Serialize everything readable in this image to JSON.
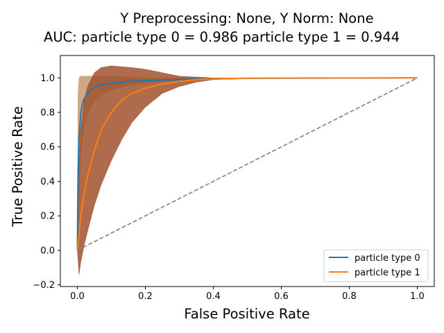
{
  "chart_data": {
    "type": "line",
    "title_line1": "Y Preprocessing: None, Y Norm: None",
    "title_line2": "AUC: particle type 0 = 0.986 particle type 1 = 0.944",
    "xlabel": "False Positive Rate",
    "ylabel": "True Positive Rate",
    "xlim": [
      -0.05,
      1.05
    ],
    "ylim": [
      -0.21,
      1.13
    ],
    "xticks": [
      0.0,
      0.2,
      0.4,
      0.6,
      0.8,
      1.0
    ],
    "xtick_labels": [
      "0.0",
      "0.2",
      "0.4",
      "0.6",
      "0.8",
      "1.0"
    ],
    "yticks": [
      -0.2,
      0.0,
      0.2,
      0.4,
      0.6,
      0.8,
      1.0
    ],
    "ytick_labels": [
      "−0.2",
      "0.0",
      "0.2",
      "0.4",
      "0.6",
      "0.8",
      "1.0"
    ],
    "legend_position": "lower-right",
    "grid": false,
    "diagonal": {
      "x": [
        0,
        1
      ],
      "y": [
        0,
        1
      ],
      "color": "#808080",
      "style": "dashed"
    },
    "series": [
      {
        "name": "particle type 0",
        "color": "#1f77b4",
        "band_color": "#c49a6c",
        "x": [
          0,
          0.002,
          0.005,
          0.01,
          0.015,
          0.02,
          0.03,
          0.04,
          0.05,
          0.07,
          0.1,
          0.15,
          0.2,
          0.3,
          0.4,
          0.5,
          0.6,
          0.8,
          1.0
        ],
        "y": [
          0,
          0.45,
          0.65,
          0.79,
          0.85,
          0.88,
          0.91,
          0.93,
          0.945,
          0.96,
          0.97,
          0.98,
          0.985,
          0.99,
          0.995,
          0.997,
          0.998,
          0.999,
          1.0
        ],
        "y_lower": [
          0,
          0.1,
          0.3,
          0.55,
          0.65,
          0.72,
          0.79,
          0.83,
          0.86,
          0.9,
          0.93,
          0.955,
          0.97,
          0.985,
          0.993,
          0.996,
          0.997,
          0.999,
          1.0
        ],
        "y_upper": [
          0,
          0.9,
          1.0,
          1.01,
          1.01,
          1.01,
          1.01,
          1.01,
          1.01,
          1.01,
          1.01,
          1.005,
          1.0,
          1.0,
          1.0,
          1.0,
          1.0,
          1.0,
          1.0
        ]
      },
      {
        "name": "particle type 1",
        "color": "#ff7f0e",
        "band_color": "#a0522d",
        "x": [
          0,
          0.005,
          0.01,
          0.02,
          0.03,
          0.05,
          0.07,
          0.1,
          0.13,
          0.16,
          0.2,
          0.25,
          0.3,
          0.35,
          0.4,
          0.5,
          0.6,
          0.8,
          1.0
        ],
        "y": [
          0,
          0.1,
          0.2,
          0.33,
          0.43,
          0.58,
          0.7,
          0.8,
          0.87,
          0.91,
          0.94,
          0.965,
          0.98,
          0.99,
          0.995,
          0.998,
          0.999,
          0.9995,
          1.0
        ],
        "y_lower": [
          0,
          -0.14,
          -0.07,
          0.03,
          0.11,
          0.26,
          0.38,
          0.52,
          0.64,
          0.74,
          0.83,
          0.91,
          0.95,
          0.975,
          0.99,
          0.996,
          0.998,
          0.999,
          1.0
        ],
        "y_upper": [
          0,
          0.5,
          0.7,
          0.87,
          0.95,
          1.03,
          1.06,
          1.07,
          1.065,
          1.06,
          1.05,
          1.03,
          1.01,
          1.005,
          1.0,
          1.0,
          1.0,
          1.0,
          1.0
        ]
      }
    ]
  }
}
